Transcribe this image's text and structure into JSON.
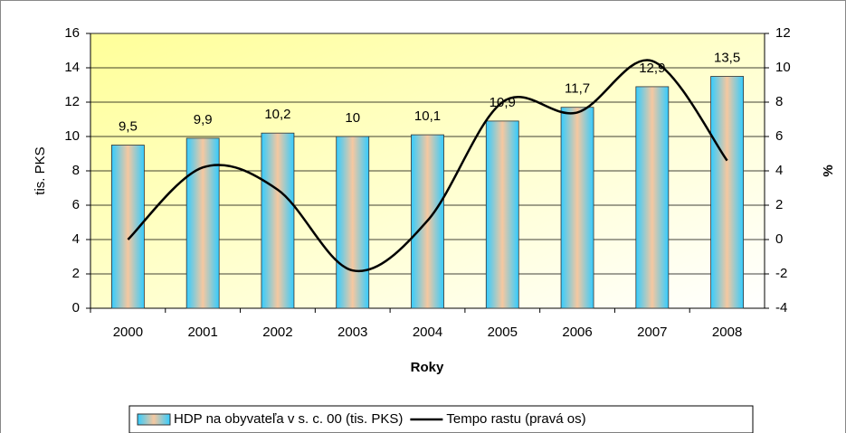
{
  "chart_data": {
    "type": "bar",
    "categories": [
      "2000",
      "2001",
      "2002",
      "2003",
      "2004",
      "2005",
      "2006",
      "2007",
      "2008"
    ],
    "xlabel": "Roky",
    "ylabel": "tis. PKS",
    "y2label": "%",
    "ylim": [
      0,
      16
    ],
    "yticks": [
      0,
      2,
      4,
      6,
      8,
      10,
      12,
      14,
      16
    ],
    "y2lim": [
      -4,
      12
    ],
    "y2ticks": [
      -4,
      -2,
      0,
      2,
      4,
      6,
      8,
      10,
      12
    ],
    "grid": true,
    "legend": "bottom",
    "series": [
      {
        "name": "HDP na obyvateľa v s. c. 00 (tis. PKS)",
        "type": "bar",
        "color": "#f6c8a0",
        "values": [
          9.5,
          9.9,
          10.2,
          10,
          10.1,
          10.9,
          11.7,
          12.9,
          13.5
        ],
        "value_labels": [
          "9,5",
          "9,9",
          "10,2",
          "10",
          "10,1",
          "10,9",
          "11,7",
          "12,9",
          "13,5"
        ]
      },
      {
        "name": "Tempo rastu (pravá os)",
        "type": "line",
        "axis": "y2",
        "color": "#000000",
        "values": [
          0,
          4.2,
          2.9,
          -1.8,
          1.1,
          8.0,
          7.4,
          10.4,
          4.6
        ]
      }
    ]
  }
}
